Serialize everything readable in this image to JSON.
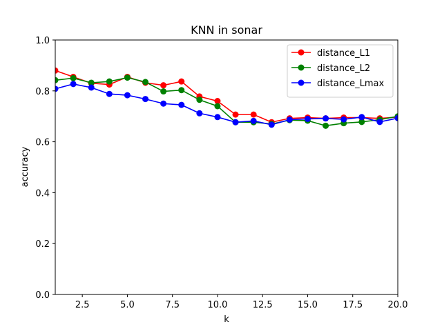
{
  "chart_data": {
    "type": "line",
    "title": "KNN in sonar",
    "xlabel": "k",
    "ylabel": "accuracy",
    "xlim": [
      1,
      20
    ],
    "ylim": [
      0.0,
      1.0
    ],
    "x_ticks": [
      2.5,
      5.0,
      7.5,
      10.0,
      12.5,
      15.0,
      17.5,
      20.0
    ],
    "x_tick_labels": [
      "2.5",
      "5.0",
      "7.5",
      "10.0",
      "12.5",
      "15.0",
      "17.5",
      "20.0"
    ],
    "y_ticks": [
      0.0,
      0.2,
      0.4,
      0.6,
      0.8,
      1.0
    ],
    "y_tick_labels": [
      "0.0",
      "0.2",
      "0.4",
      "0.6",
      "0.8",
      "1.0"
    ],
    "grid": false,
    "legend_position": "top-right",
    "x": [
      1,
      2,
      3,
      4,
      5,
      6,
      7,
      8,
      9,
      10,
      11,
      12,
      13,
      14,
      15,
      16,
      17,
      18,
      19,
      20
    ],
    "series": [
      {
        "name": "distance_L1",
        "color": "#ff0000",
        "values": [
          0.88,
          0.855,
          0.83,
          0.825,
          0.855,
          0.832,
          0.822,
          0.837,
          0.778,
          0.76,
          0.707,
          0.707,
          0.677,
          0.692,
          0.695,
          0.692,
          0.695,
          0.695,
          0.692,
          0.697
        ]
      },
      {
        "name": "distance_L2",
        "color": "#008000",
        "values": [
          0.842,
          0.85,
          0.832,
          0.837,
          0.852,
          0.835,
          0.798,
          0.803,
          0.765,
          0.74,
          0.677,
          0.677,
          0.67,
          0.685,
          0.683,
          0.663,
          0.673,
          0.678,
          0.687,
          0.7
        ]
      },
      {
        "name": "distance_Lmax",
        "color": "#0000ff",
        "values": [
          0.808,
          0.827,
          0.813,
          0.788,
          0.783,
          0.768,
          0.75,
          0.745,
          0.712,
          0.697,
          0.677,
          0.682,
          0.667,
          0.687,
          0.69,
          0.692,
          0.688,
          0.697,
          0.678,
          0.693
        ]
      }
    ]
  }
}
